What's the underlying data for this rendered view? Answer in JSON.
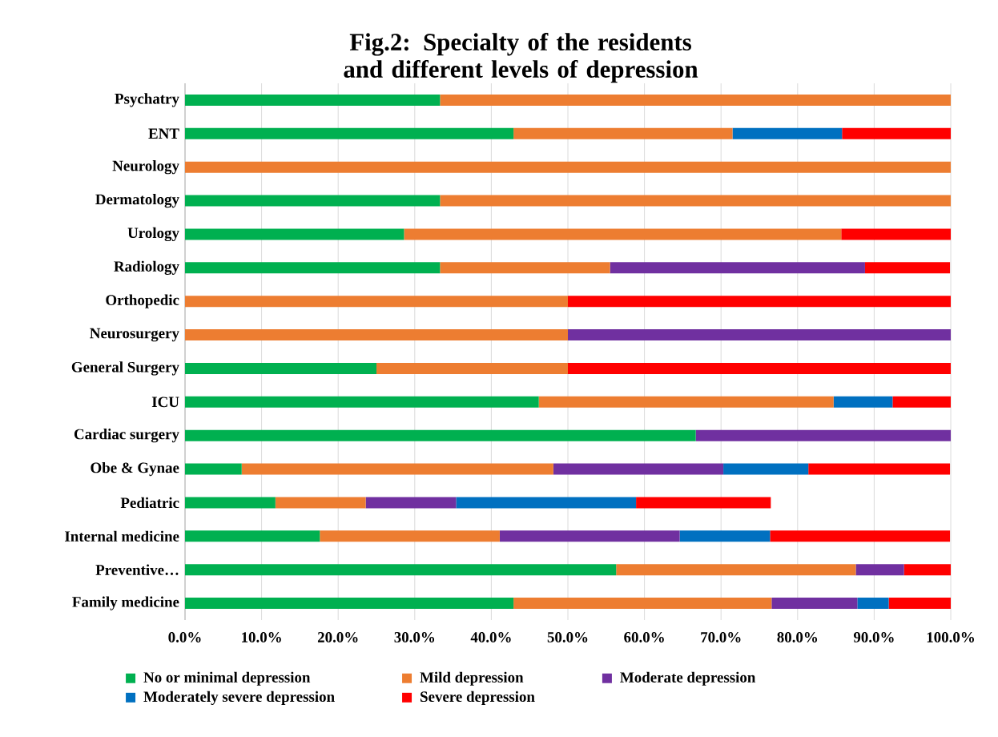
{
  "chart_data": {
    "type": "bar",
    "orientation": "horizontal",
    "stacked": true,
    "title": "Fig.2: Specialty of the residents and different levels of depression",
    "categories": [
      "Psychatry",
      "ENT",
      "Neurology",
      "Dermatology",
      "Urology",
      "Radiology",
      "Orthopedic",
      "Neurosurgery",
      "General Surgery",
      "ICU",
      "Cardiac surgery",
      "Obe & Gynae",
      "Pediatric",
      "Internal medicine",
      "Preventive…",
      "Family medicine"
    ],
    "series": [
      {
        "name": "No or minimal depression",
        "color": "#00b050",
        "values": [
          33.3,
          42.9,
          0,
          33.3,
          28.6,
          33.3,
          0,
          0,
          25,
          46.2,
          66.7,
          7.4,
          11.8,
          17.6,
          56.3,
          42.9
        ]
      },
      {
        "name": "Mild depression",
        "color": "#ed7d31",
        "values": [
          66.7,
          28.6,
          100,
          66.7,
          57.1,
          22.2,
          50,
          50,
          25,
          38.5,
          0,
          40.7,
          11.8,
          23.5,
          31.3,
          33.7
        ]
      },
      {
        "name": "Moderate depression",
        "color": "#7030a0",
        "values": [
          0,
          0,
          0,
          0,
          0,
          33.3,
          0,
          50,
          0,
          0,
          33.3,
          22.2,
          11.8,
          23.5,
          6.3,
          11.2
        ]
      },
      {
        "name": "Moderately severe depression",
        "color": "#0070c0",
        "values": [
          0,
          14.3,
          0,
          0,
          0,
          0,
          0,
          0,
          0,
          7.7,
          0,
          11.1,
          23.5,
          11.8,
          0,
          4.1
        ]
      },
      {
        "name": "Severe depression",
        "color": "#ff0000",
        "values": [
          0,
          14.2,
          0,
          0,
          14.3,
          11.1,
          50,
          0,
          50,
          7.6,
          0,
          18.5,
          17.6,
          23.5,
          6.3,
          8.2
        ]
      }
    ],
    "xlim": [
      0,
      100
    ],
    "xticks": [
      {
        "value": 0,
        "label": "0.0%"
      },
      {
        "value": 10,
        "label": "10.0%"
      },
      {
        "value": 20,
        "label": "20.0%"
      },
      {
        "value": 30,
        "label": "30.0%"
      },
      {
        "value": 40,
        "label": "40.0%"
      },
      {
        "value": 50,
        "label": "50.0%"
      },
      {
        "value": 60,
        "label": "60.0%"
      },
      {
        "value": 70,
        "label": "70.0%"
      },
      {
        "value": 80,
        "label": "80.0%"
      },
      {
        "value": 90,
        "label": "90.0%"
      },
      {
        "value": 100,
        "label": "100.0%"
      }
    ],
    "grid": "x",
    "legend": "bottom"
  }
}
